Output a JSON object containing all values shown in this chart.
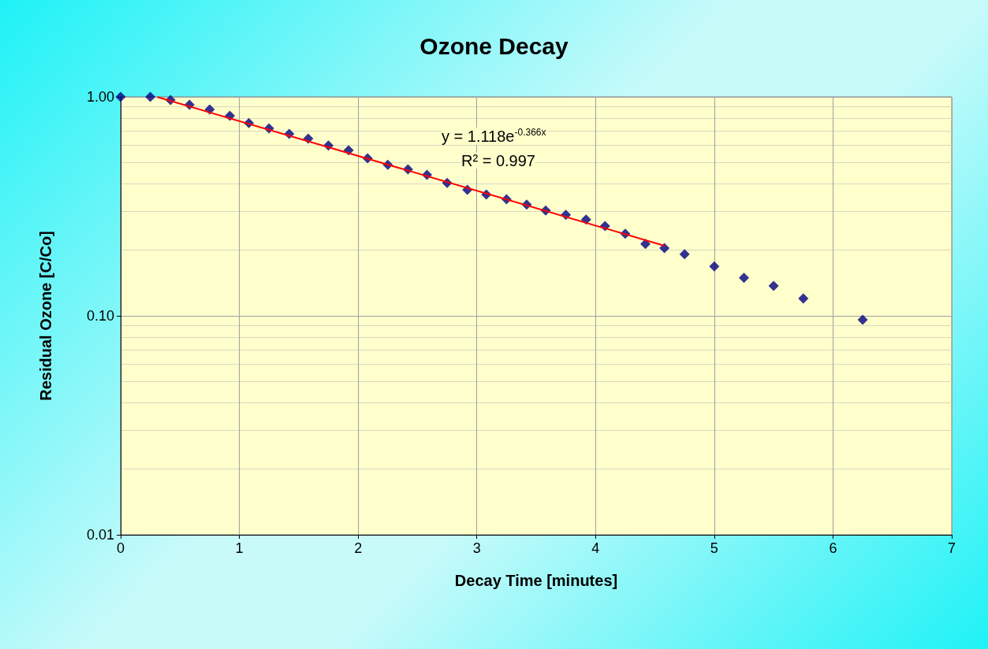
{
  "chart_data": {
    "type": "scatter",
    "title": "Ozone Decay",
    "xlabel": "Decay Time [minutes]",
    "ylabel": "Residual Ozone [C/Co]",
    "x": [
      0,
      0.25,
      0.42,
      0.58,
      0.75,
      0.92,
      1.08,
      1.25,
      1.42,
      1.58,
      1.75,
      1.92,
      2.08,
      2.25,
      2.42,
      2.58,
      2.75,
      2.92,
      3.08,
      3.25,
      3.42,
      3.58,
      3.75,
      3.92,
      4.08,
      4.25,
      4.42,
      4.58,
      4.75,
      5.0,
      5.25,
      5.5,
      5.75,
      6.25
    ],
    "series": [
      {
        "color": "#000080",
        "marker": "diamond",
        "values": [
          1.0,
          1.0,
          0.967,
          0.92,
          0.876,
          0.82,
          0.76,
          0.718,
          0.677,
          0.645,
          0.6,
          0.57,
          0.524,
          0.49,
          0.467,
          0.44,
          0.405,
          0.376,
          0.358,
          0.341,
          0.322,
          0.303,
          0.289,
          0.275,
          0.257,
          0.237,
          0.213,
          0.204,
          0.191,
          0.168,
          0.149,
          0.137,
          0.12,
          0.096
        ]
      },
      {
        "type": "line",
        "color": "#ff0000",
        "line_style": "solid",
        "marker": "none",
        "x": [
          0.31,
          4.58
        ],
        "values": [
          0.998,
          0.209
        ]
      }
    ],
    "annotations": [
      "y = 1.118e$^{-0.366x}$",
      "R² = 0.997"
    ],
    "log": "y",
    "xlim": [
      0,
      7
    ],
    "xticks": [
      0,
      1,
      2,
      3,
      4,
      5,
      6,
      7
    ],
    "ylim": [
      0.01,
      1
    ],
    "yticks": [
      {
        "value": 0.01,
        "label": "0.01"
      },
      {
        "value": 0.1,
        "label": "0.10"
      },
      {
        "value": 1,
        "label": "1.00"
      }
    ],
    "grid": true
  }
}
